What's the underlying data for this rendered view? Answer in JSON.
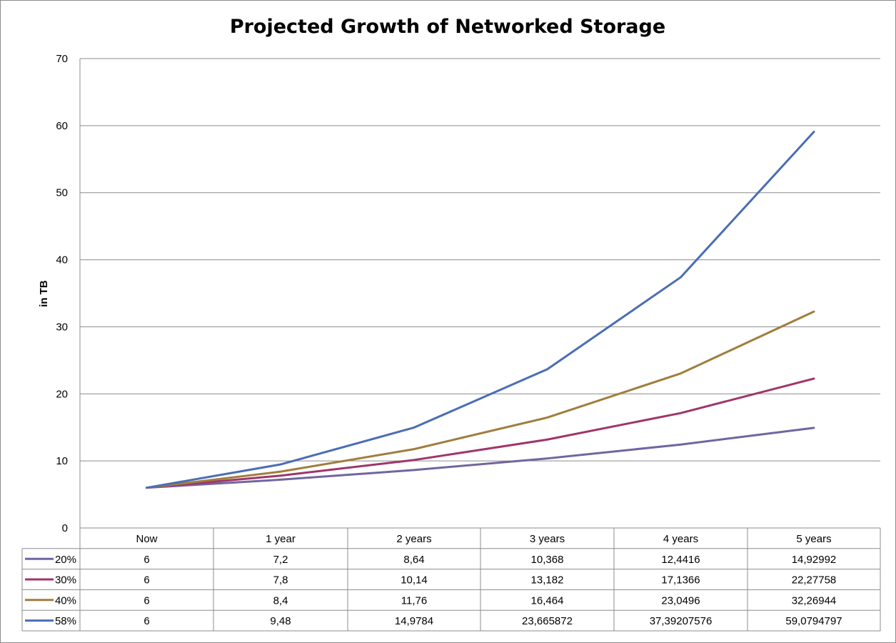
{
  "chart_data": {
    "type": "line",
    "title": "Projected Growth of Networked Storage",
    "xlabel": "",
    "ylabel": "in TB",
    "ylim": [
      0,
      70
    ],
    "yticks": [
      "0",
      "10",
      "20",
      "30",
      "40",
      "50",
      "60",
      "70"
    ],
    "categories": [
      "Now",
      "1 year",
      "2 years",
      "3 years",
      "4 years",
      "5 years"
    ],
    "legend": "data-table",
    "grid": true,
    "series": [
      {
        "name": "20%",
        "color": "#7065a0",
        "values": [
          6,
          7.2,
          8.64,
          10.368,
          12.4416,
          14.92992
        ],
        "labels": [
          "6",
          "7,2",
          "8,64",
          "10,368",
          "12,4416",
          "14,92992"
        ]
      },
      {
        "name": "30%",
        "color": "#a0356a",
        "values": [
          6,
          7.8,
          10.14,
          13.182,
          17.1366,
          22.27758
        ],
        "labels": [
          "6",
          "7,8",
          "10,14",
          "13,182",
          "17,1366",
          "22,27758"
        ]
      },
      {
        "name": "40%",
        "color": "#a07e3e",
        "values": [
          6,
          8.4,
          11.76,
          16.464,
          23.0496,
          32.26944
        ],
        "labels": [
          "6",
          "8,4",
          "11,76",
          "16,464",
          "23,0496",
          "32,26944"
        ]
      },
      {
        "name": "58%",
        "color": "#4a6db5",
        "values": [
          6,
          9.48,
          14.9784,
          23.665872,
          37.39207576,
          59.0794797
        ],
        "labels": [
          "6",
          "9,48",
          "14,9784",
          "23,665872",
          "37,39207576",
          "59,0794797"
        ]
      }
    ]
  }
}
